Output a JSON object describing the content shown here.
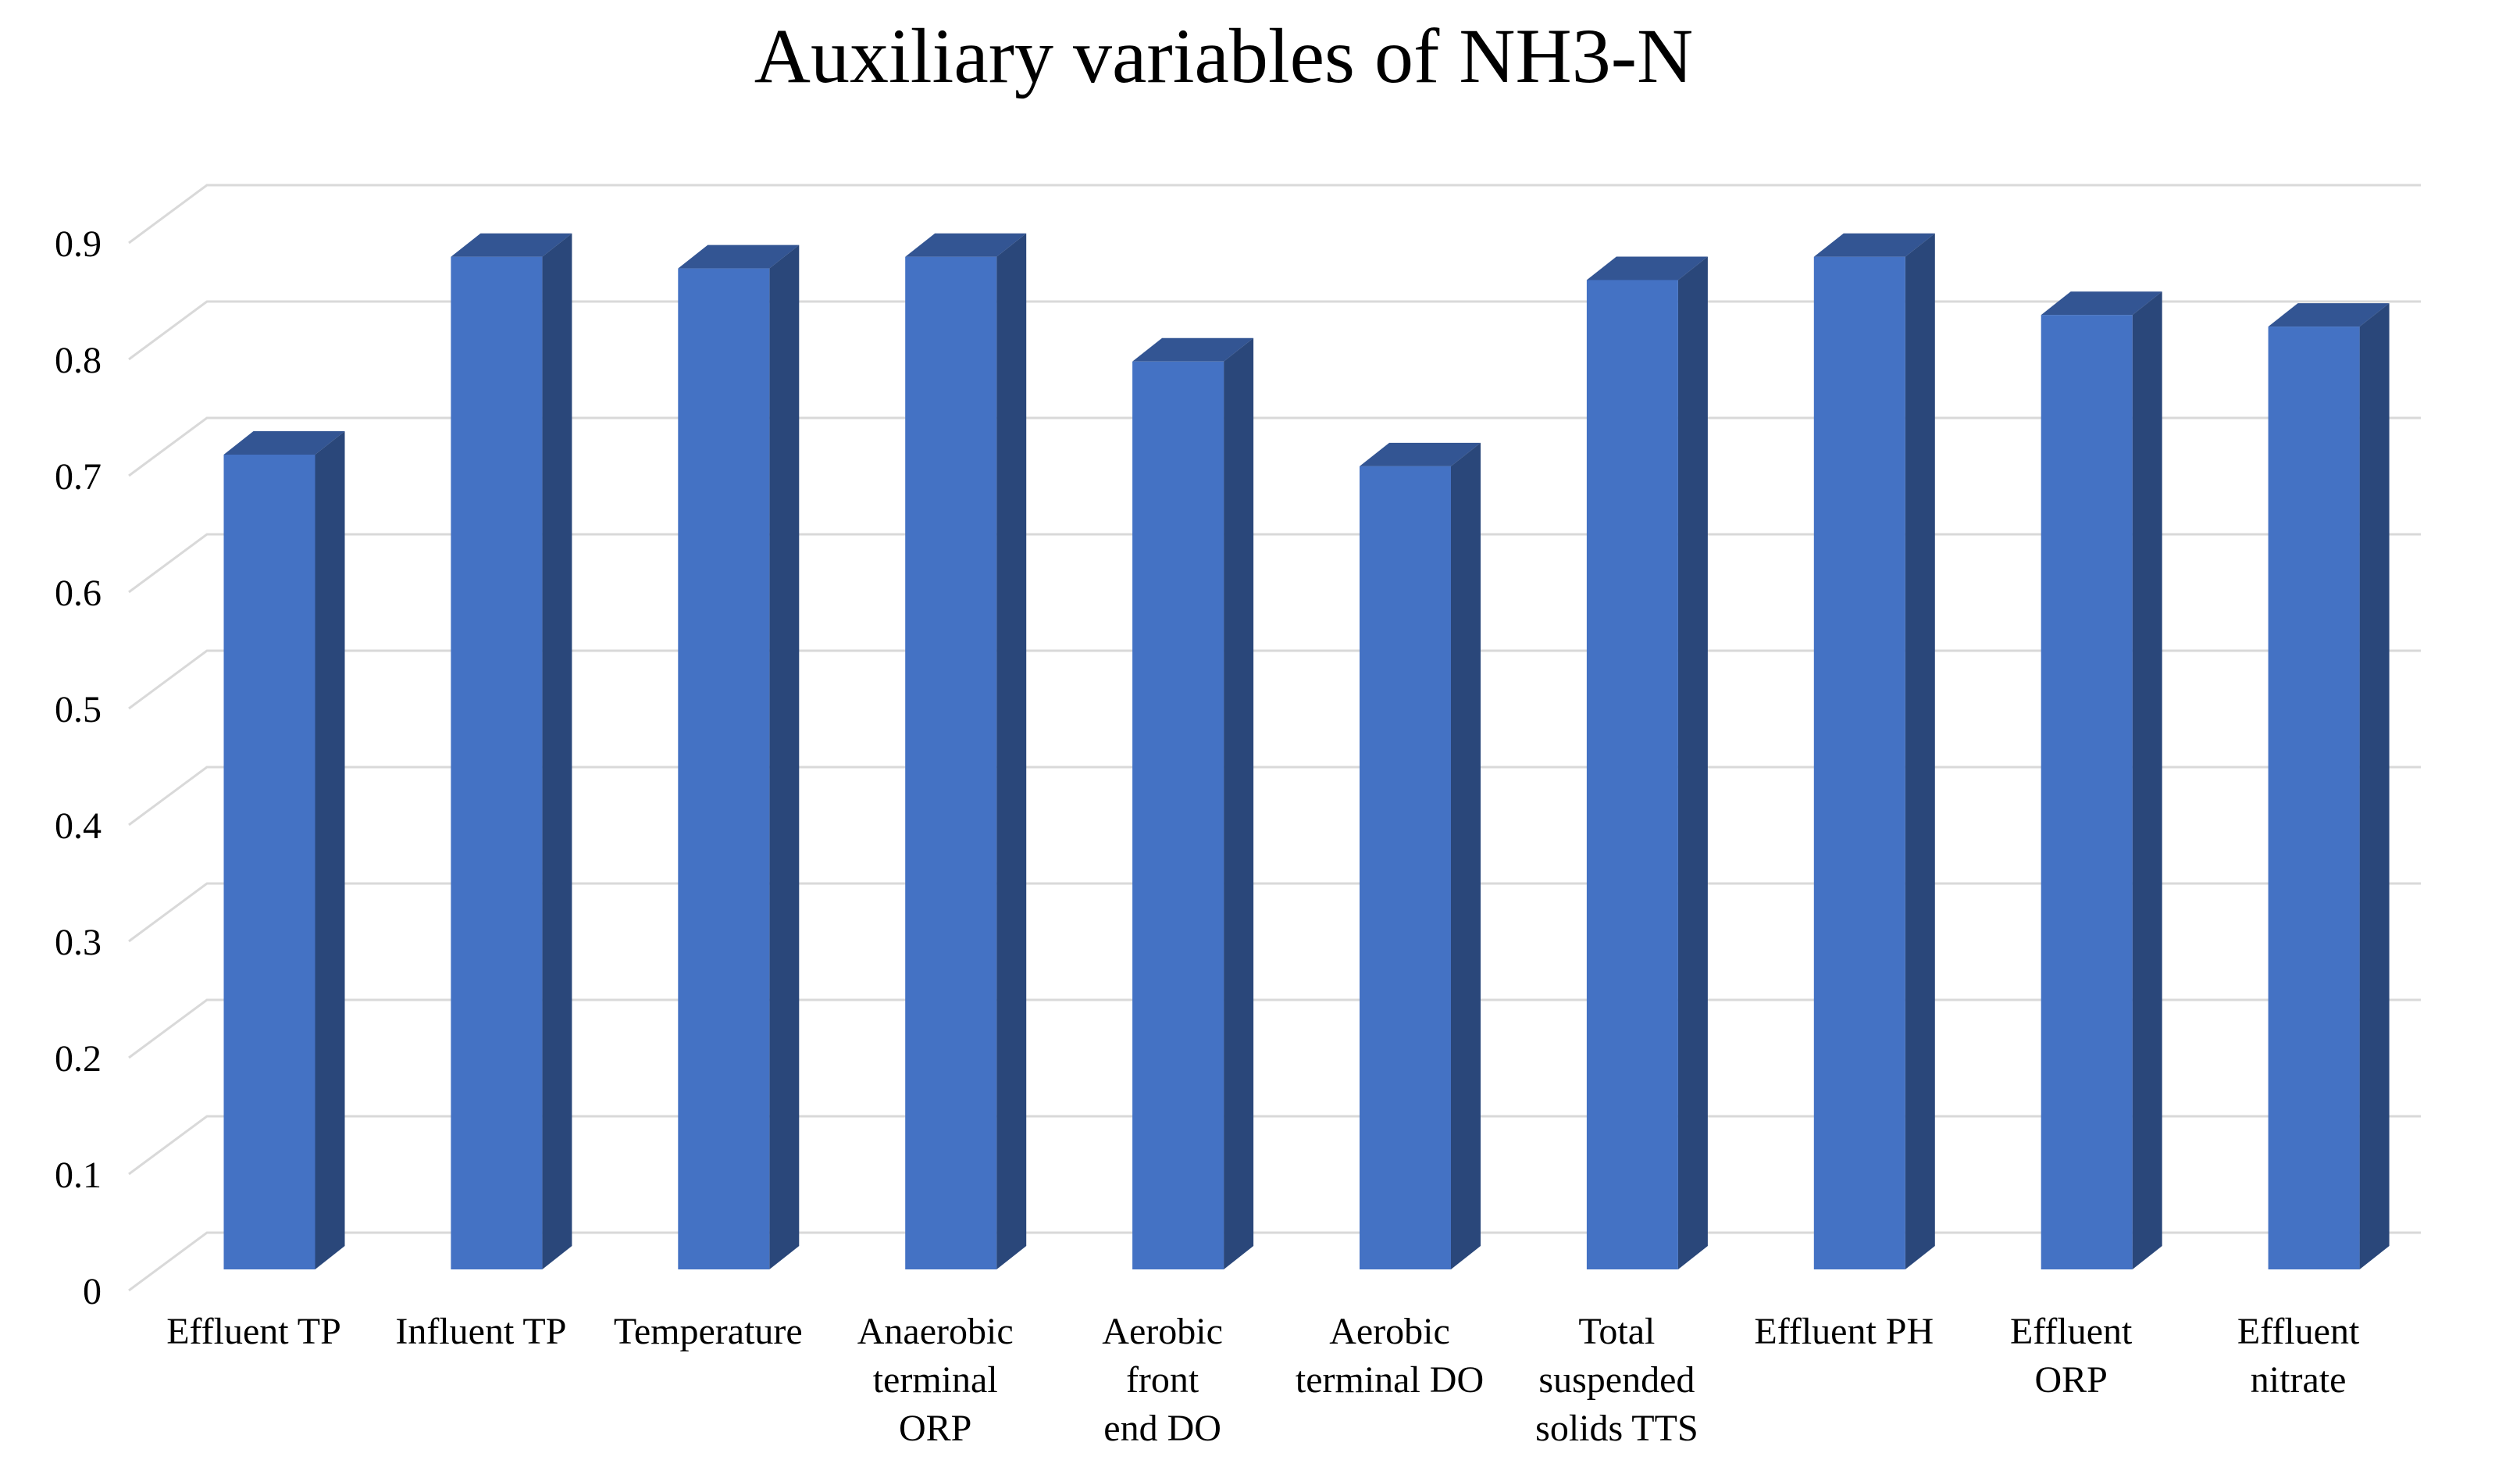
{
  "chart_data": {
    "type": "bar",
    "style": "3d-column",
    "title": "Auxiliary variables of NH3-N",
    "categories": [
      "Effluent TP",
      "Influent TP",
      "Temperature",
      "Anaerobic terminal ORP",
      "Aerobic front end DO",
      "Aerobic terminal DO",
      "Total suspended solids TTS",
      "Effluent PH",
      "Effluent ORP",
      "Effluent nitrate"
    ],
    "category_lines": [
      [
        "Effluent TP"
      ],
      [
        "Influent TP"
      ],
      [
        "Temperature"
      ],
      [
        "Anaerobic",
        "terminal",
        "ORP"
      ],
      [
        "Aerobic",
        "front",
        "end DO"
      ],
      [
        "Aerobic",
        "terminal DO"
      ],
      [
        "Total",
        "suspended",
        "solids TTS"
      ],
      [
        "Effluent PH"
      ],
      [
        "Effluent",
        "ORP"
      ],
      [
        "Effluent",
        "nitrate"
      ]
    ],
    "values": [
      0.7,
      0.87,
      0.86,
      0.87,
      0.78,
      0.69,
      0.85,
      0.87,
      0.82,
      0.81
    ],
    "series": [
      {
        "name": "Auxiliary variables of NH3-N",
        "values": [
          0.7,
          0.87,
          0.86,
          0.87,
          0.78,
          0.69,
          0.85,
          0.87,
          0.82,
          0.81
        ]
      }
    ],
    "xlabel": "",
    "ylabel": "",
    "ylim": [
      0,
      0.9
    ],
    "ytick_step": 0.1,
    "yticks": [
      "0",
      "0.1",
      "0.2",
      "0.3",
      "0.4",
      "0.5",
      "0.6",
      "0.7",
      "0.8",
      "0.9"
    ],
    "grid": true,
    "legend": false,
    "colors": {
      "bar_front": "#4472C4",
      "bar_top": "#335593",
      "bar_side": "#2A477A",
      "gridline": "#D9D9D9",
      "text": "#000000",
      "background": "#FFFFFF"
    }
  }
}
